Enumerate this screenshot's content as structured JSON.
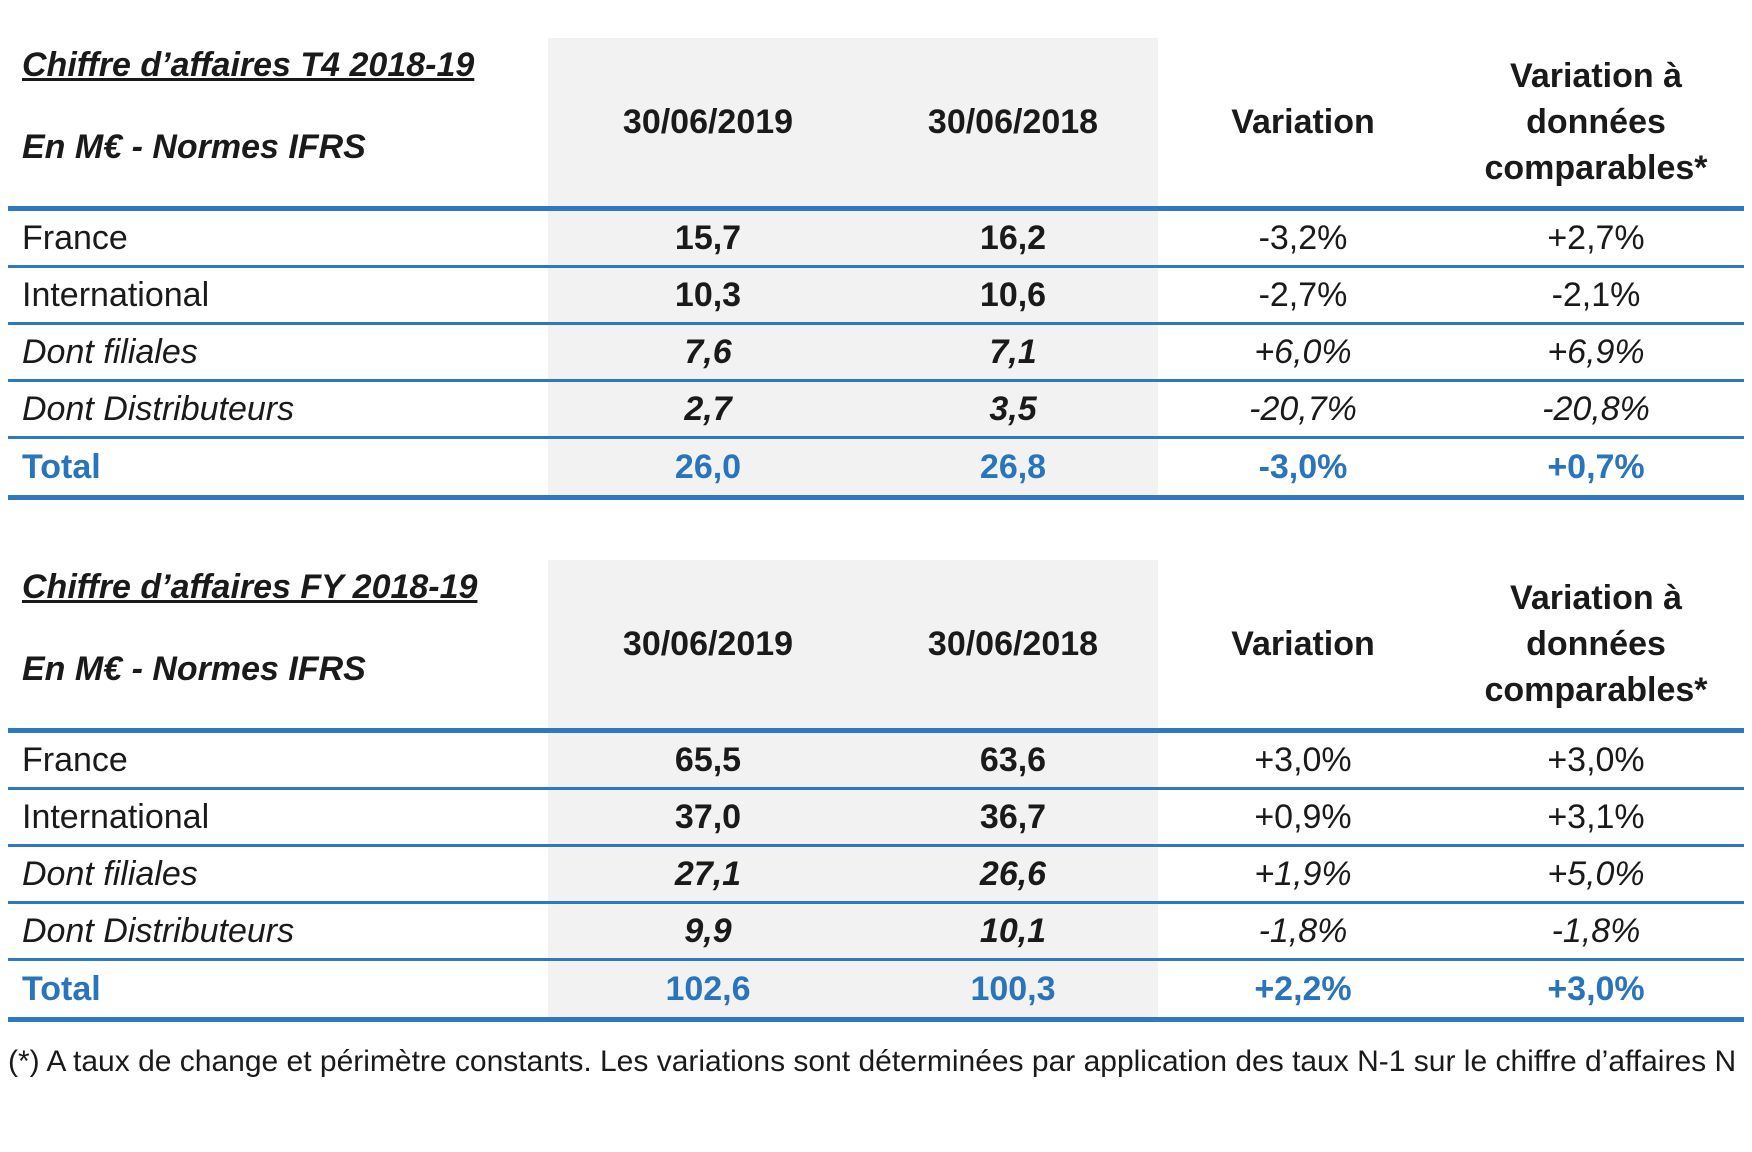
{
  "tables": [
    {
      "title": "Chiffre d’affaires T4 2018-19",
      "subtitle": "En M€ - Normes IFRS",
      "columns": [
        "30/06/2019",
        "30/06/2018",
        "Variation",
        "Variation à données comparables*"
      ],
      "rows": [
        {
          "label": "France",
          "c1": "15,7",
          "c2": "16,2",
          "c3": "-3,2%",
          "c4": "+2,7%"
        },
        {
          "label": "International",
          "c1": "10,3",
          "c2": "10,6",
          "c3": "-2,7%",
          "c4": "-2,1%"
        },
        {
          "label": "Dont filiales",
          "c1": "7,6",
          "c2": "7,1",
          "c3": "+6,0%",
          "c4": "+6,9%"
        },
        {
          "label": "Dont Distributeurs",
          "c1": "2,7",
          "c2": "3,5",
          "c3": "-20,7%",
          "c4": "-20,8%"
        },
        {
          "label": "Total",
          "c1": "26,0",
          "c2": "26,8",
          "c3": "-3,0%",
          "c4": "+0,7%"
        }
      ]
    },
    {
      "title": "Chiffre d’affaires FY 2018-19",
      "subtitle": "En M€ - Normes IFRS",
      "columns": [
        "30/06/2019",
        "30/06/2018",
        "Variation",
        "Variation à données comparables*"
      ],
      "rows": [
        {
          "label": "France",
          "c1": "65,5",
          "c2": "63,6",
          "c3": "+3,0%",
          "c4": "+3,0%"
        },
        {
          "label": "International",
          "c1": "37,0",
          "c2": "36,7",
          "c3": "+0,9%",
          "c4": "+3,1%"
        },
        {
          "label": "Dont filiales",
          "c1": "27,1",
          "c2": "26,6",
          "c3": "+1,9%",
          "c4": "+5,0%"
        },
        {
          "label": "Dont Distributeurs",
          "c1": "9,9",
          "c2": "10,1",
          "c3": "-1,8%",
          "c4": "-1,8%"
        },
        {
          "label": "Total",
          "c1": "102,6",
          "c2": "100,3",
          "c3": "+2,2%",
          "c4": "+3,0%"
        }
      ]
    }
  ],
  "footnote": "(*) A taux de change et périmètre constants. Les variations sont déterminées par application des taux N-1 sur le chiffre d’affaires N",
  "colors": {
    "accent": "#2f78bf",
    "total_text": "#2a74bb",
    "shade": "#f2f2f2"
  }
}
